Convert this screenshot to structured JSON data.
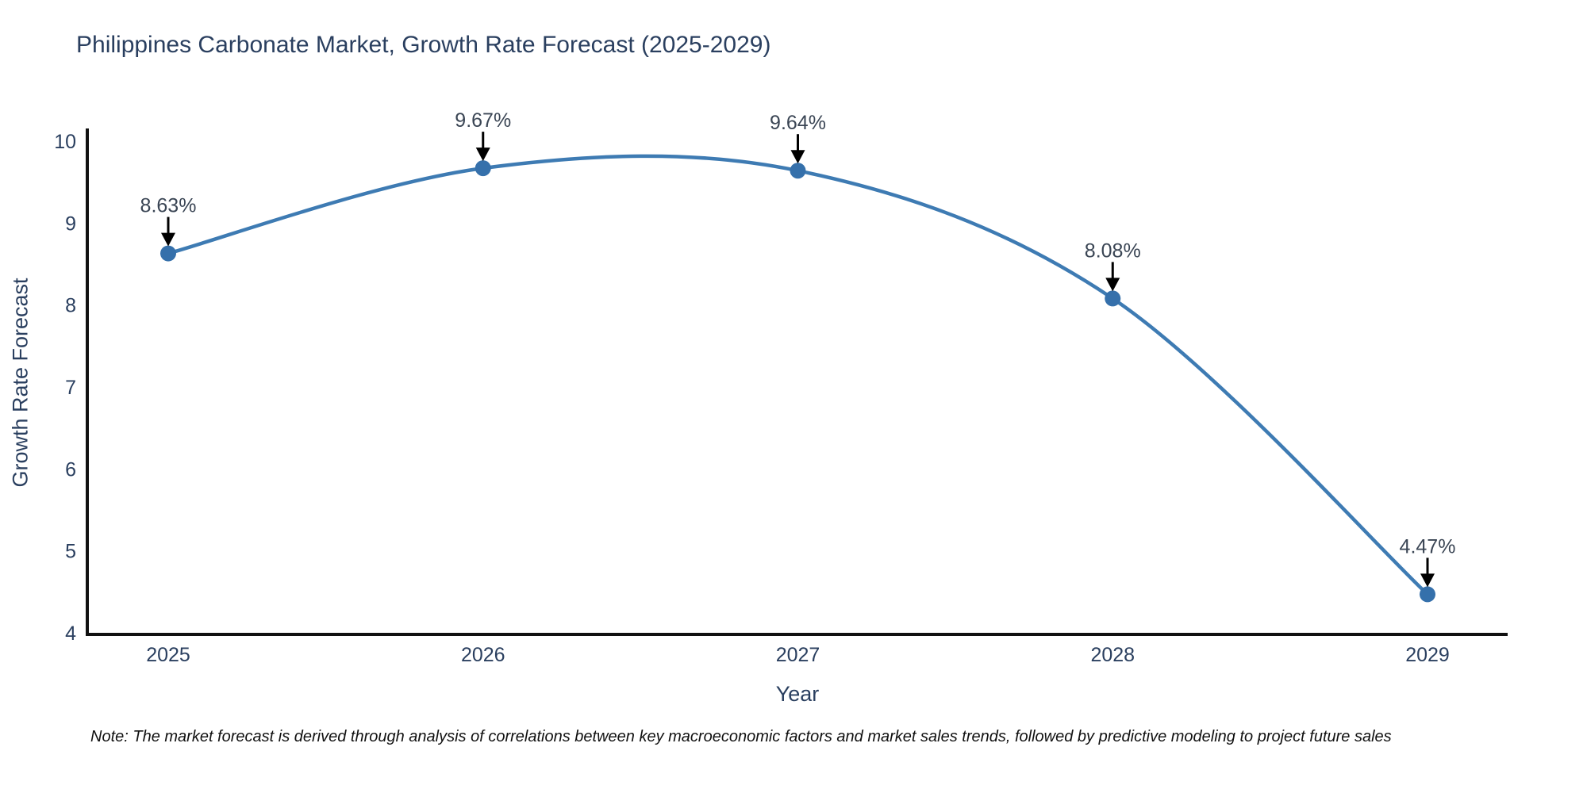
{
  "note": "Note: The market forecast is derived through analysis of correlations between key macroeconomic factors and market sales trends, followed by predictive modeling to project future sales",
  "chart_data": {
    "type": "line",
    "title": "Philippines Carbonate Market, Growth Rate Forecast (2025-2029)",
    "xlabel": "Year",
    "ylabel": "Growth Rate Forecast",
    "x": [
      2025,
      2026,
      2027,
      2028,
      2029
    ],
    "values": [
      8.63,
      9.67,
      9.64,
      8.08,
      4.47
    ],
    "point_labels": [
      "8.63%",
      "9.67%",
      "9.64%",
      "8.08%",
      "4.47%"
    ],
    "xticks": [
      "2025",
      "2026",
      "2027",
      "2028",
      "2029"
    ],
    "yticks": [
      4,
      5,
      6,
      7,
      8,
      9,
      10
    ],
    "ylim": [
      4,
      10
    ],
    "grid": false,
    "legend": "none",
    "curve": "spline",
    "colors": {
      "line": "#3e7bb3",
      "marker": "#3570ab",
      "axis": "#111111",
      "tick_text": "#2a3f5f",
      "annotation_text": "#3a4554",
      "annotation_arrow": "#000000"
    }
  }
}
